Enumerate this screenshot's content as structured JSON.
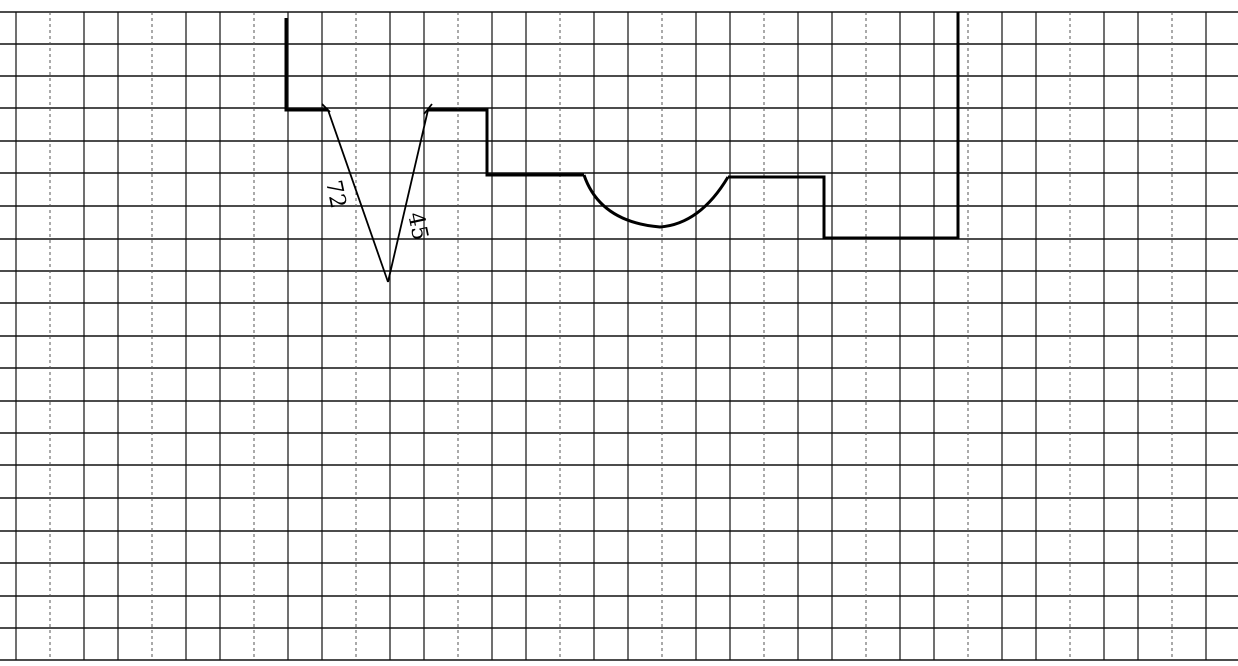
{
  "diagram": {
    "background_color": "#ffffff",
    "line_color": "#000000",
    "labels": {
      "left_angle": "72",
      "right_angle": "45"
    }
  }
}
